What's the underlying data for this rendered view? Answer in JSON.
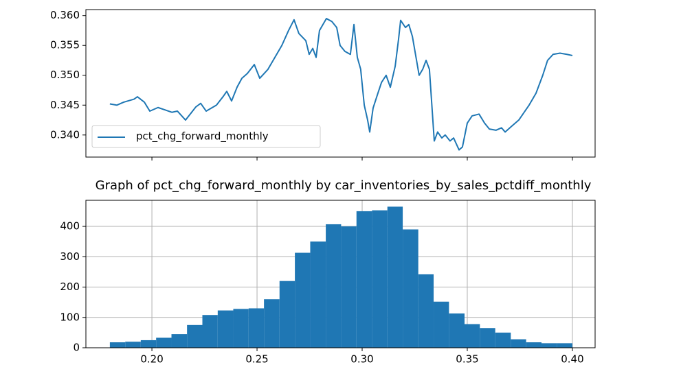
{
  "chart_data": [
    {
      "type": "line",
      "x": [
        0.18,
        0.1833,
        0.1866,
        0.1915,
        0.1931,
        0.1964,
        0.199,
        0.2029,
        0.2062,
        0.2095,
        0.2121,
        0.216,
        0.2209,
        0.2232,
        0.2258,
        0.2307,
        0.234,
        0.2356,
        0.2379,
        0.2405,
        0.2428,
        0.2454,
        0.2487,
        0.2513,
        0.2552,
        0.2585,
        0.2618,
        0.265,
        0.2676,
        0.2699,
        0.2732,
        0.2748,
        0.2765,
        0.2781,
        0.2797,
        0.283,
        0.2856,
        0.2879,
        0.2895,
        0.2918,
        0.2944,
        0.2961,
        0.2977,
        0.2993,
        0.301,
        0.3026,
        0.3036,
        0.3052,
        0.3075,
        0.3092,
        0.3114,
        0.3134,
        0.3157,
        0.3173,
        0.3183,
        0.3206,
        0.3222,
        0.3239,
        0.3271,
        0.3288,
        0.3304,
        0.332,
        0.3343,
        0.3359,
        0.3379,
        0.3395,
        0.3418,
        0.3435,
        0.3461,
        0.3477,
        0.35,
        0.3523,
        0.3556,
        0.3582,
        0.3605,
        0.3637,
        0.3663,
        0.368,
        0.3712,
        0.3745,
        0.3794,
        0.3827,
        0.3859,
        0.3882,
        0.3908,
        0.3941,
        0.3974,
        0.4
      ],
      "series": [
        {
          "name": "pct_chg_forward_monthly",
          "color": "#1f77b4",
          "values": [
            0.3452,
            0.345,
            0.3455,
            0.346,
            0.3464,
            0.3455,
            0.344,
            0.3446,
            0.3442,
            0.3438,
            0.344,
            0.3425,
            0.3447,
            0.3453,
            0.344,
            0.345,
            0.3465,
            0.3473,
            0.3457,
            0.348,
            0.3495,
            0.3503,
            0.3518,
            0.3495,
            0.351,
            0.353,
            0.355,
            0.3575,
            0.3593,
            0.357,
            0.3558,
            0.3535,
            0.3545,
            0.353,
            0.3575,
            0.3595,
            0.359,
            0.358,
            0.355,
            0.354,
            0.3535,
            0.3585,
            0.353,
            0.351,
            0.345,
            0.3425,
            0.3405,
            0.3445,
            0.347,
            0.3488,
            0.35,
            0.348,
            0.3515,
            0.356,
            0.3592,
            0.358,
            0.3585,
            0.3565,
            0.35,
            0.351,
            0.3525,
            0.351,
            0.339,
            0.3405,
            0.3395,
            0.34,
            0.339,
            0.3395,
            0.3375,
            0.338,
            0.342,
            0.3432,
            0.3435,
            0.342,
            0.341,
            0.3408,
            0.3412,
            0.3405,
            0.3415,
            0.3425,
            0.345,
            0.347,
            0.35,
            0.3525,
            0.3535,
            0.3537,
            0.3535,
            0.3533
          ]
        }
      ],
      "xlim": [
        0.1686,
        0.4108
      ],
      "xticks": [
        0.2,
        0.25,
        0.3,
        0.35,
        0.4
      ],
      "ylim": [
        0.3363,
        0.361
      ],
      "yticks": [
        {
          "value": 0.34,
          "label": "0.340"
        },
        {
          "value": 0.345,
          "label": "0.345"
        },
        {
          "value": 0.35,
          "label": "0.350"
        },
        {
          "value": 0.355,
          "label": "0.355"
        },
        {
          "value": 0.36,
          "label": "0.360"
        }
      ],
      "grid": false,
      "legend": "lower left"
    },
    {
      "type": "histogram",
      "title": "Graph of pct_chg_forward_monthly by car_inventories_by_sales_pctdiff_monthly",
      "bins": [
        0.18,
        0.1873,
        0.1947,
        0.202,
        0.2093,
        0.2167,
        0.224,
        0.2313,
        0.2387,
        0.246,
        0.2533,
        0.2607,
        0.268,
        0.2753,
        0.2827,
        0.29,
        0.2973,
        0.3047,
        0.312,
        0.3193,
        0.3267,
        0.334,
        0.3413,
        0.3487,
        0.356,
        0.3633,
        0.3707,
        0.378,
        0.3853,
        0.3927,
        0.4
      ],
      "values": [
        18,
        20,
        25,
        33,
        45,
        75,
        108,
        123,
        128,
        130,
        160,
        220,
        313,
        350,
        407,
        400,
        450,
        453,
        465,
        390,
        242,
        152,
        113,
        78,
        65,
        50,
        28,
        18,
        15,
        15
      ],
      "color": "#1f77b4",
      "xlim": [
        0.1686,
        0.4108
      ],
      "xticks": [
        {
          "value": 0.2,
          "label": "0.20"
        },
        {
          "value": 0.25,
          "label": "0.25"
        },
        {
          "value": 0.3,
          "label": "0.30"
        },
        {
          "value": 0.35,
          "label": "0.35"
        },
        {
          "value": 0.4,
          "label": "0.40"
        }
      ],
      "ylim": [
        0,
        486
      ],
      "yticks": [
        0,
        100,
        200,
        300,
        400
      ],
      "grid": true
    }
  ]
}
